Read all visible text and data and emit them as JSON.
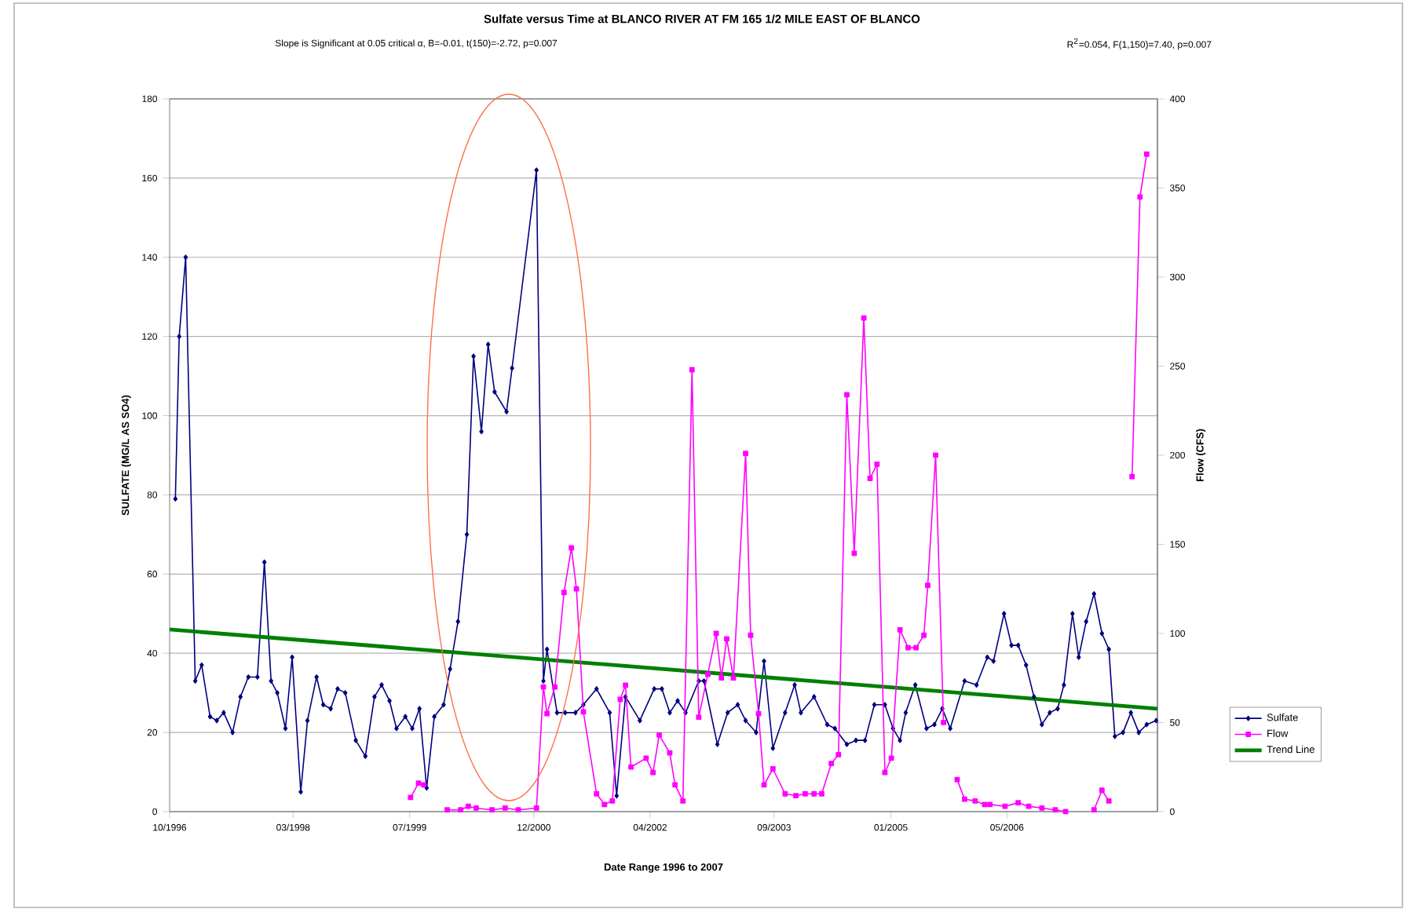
{
  "chart_data": {
    "type": "line",
    "title": "Sulfate versus Time at BLANCO RIVER AT FM 165 1/2 MILE EAST OF BLANCO",
    "subtitle": "Slope is Significant at 0.05 critical α, B=-0.01, t(150)=-2.72, p=0.007",
    "annotations": [
      "R$^{2}$=0.054, F(1,150)=7.40, p=0.007"
    ],
    "xlabel": "Date Range 1996 to 2007",
    "ylabel": "SULFATE (MG/L AS SO4)",
    "y2label": "Flow (CFS)",
    "xlim": [
      "1996-10-01",
      "2008-01-20"
    ],
    "xticks": [
      {
        "value": "1996-10-01",
        "label": "10/1996"
      },
      {
        "value": "1998-03-01",
        "label": "03/1998"
      },
      {
        "value": "1999-07-01",
        "label": "07/1999"
      },
      {
        "value": "2000-12-01",
        "label": "12/2000"
      },
      {
        "value": "2002-04-01",
        "label": "04/2002"
      },
      {
        "value": "2003-09-01",
        "label": "09/2003"
      },
      {
        "value": "2005-01-01",
        "label": "01/2005"
      },
      {
        "value": "2006-05-01",
        "label": "05/2006"
      }
    ],
    "ylim": [
      0,
      180
    ],
    "yticks": [
      0,
      20,
      40,
      60,
      80,
      100,
      120,
      140,
      160,
      180
    ],
    "y2lim": [
      0,
      400
    ],
    "y2ticks": [
      0,
      50,
      100,
      150,
      200,
      250,
      300,
      350,
      400
    ],
    "grid": "y",
    "legend": "right",
    "series": [
      {
        "name": "Sulfate",
        "color": "#000080",
        "marker": "diamond",
        "x": [
          "1996-10-25",
          "1996-11-10",
          "1996-12-07",
          "1997-01-16",
          "1997-02-12",
          "1997-03-19",
          "1997-04-16",
          "1997-05-15",
          "1997-06-21",
          "1997-07-24",
          "1997-08-26",
          "1997-10-03",
          "1997-11-01",
          "1997-11-29",
          "1997-12-25",
          "1998-01-28",
          "1998-02-25",
          "1998-04-02",
          "1998-04-30",
          "1998-06-07",
          "1998-07-05",
          "1998-08-05",
          "1998-09-03",
          "1998-10-05",
          "1998-11-18",
          "1998-12-28",
          "1999-02-04",
          "1999-03-06",
          "1999-04-08",
          "1999-05-07",
          "1999-06-13",
          "1999-07-12",
          "1999-08-11",
          "1999-09-10",
          "1999-10-12",
          "1999-11-20",
          "1999-12-17",
          "2000-01-19",
          "2000-02-25",
          "2000-03-24",
          "2000-04-26",
          "2000-05-24",
          "2000-06-20",
          "2000-08-09",
          "2000-09-01",
          "2000-12-12",
          "2001-01-10",
          "2001-01-25",
          "2001-03-08",
          "2001-04-11",
          "2001-05-24",
          "2001-06-26",
          "2001-08-20",
          "2001-10-14",
          "2001-11-12",
          "2001-12-19",
          "2002-02-17",
          "2002-04-18",
          "2002-05-20",
          "2002-06-22",
          "2002-07-25",
          "2002-08-27",
          "2002-10-21",
          "2002-11-12",
          "2003-01-07",
          "2003-02-19",
          "2003-04-02",
          "2003-05-05",
          "2003-06-18",
          "2003-07-21",
          "2003-08-27",
          "2003-10-17",
          "2003-11-26",
          "2003-12-22",
          "2004-02-15",
          "2004-04-10",
          "2004-05-12",
          "2004-07-01",
          "2004-08-08",
          "2004-09-15",
          "2004-10-24",
          "2004-12-07",
          "2005-01-10",
          "2005-02-08",
          "2005-03-04",
          "2005-04-13",
          "2005-05-30",
          "2005-07-02",
          "2005-08-04",
          "2005-09-06",
          "2005-11-05",
          "2005-12-25",
          "2006-02-08",
          "2006-03-06",
          "2006-04-19",
          "2006-05-20",
          "2006-06-17",
          "2006-07-20",
          "2006-08-22",
          "2006-09-24",
          "2006-10-27",
          "2006-11-29",
          "2006-12-25",
          "2007-01-30",
          "2007-02-25",
          "2007-03-28",
          "2007-04-30",
          "2007-06-02",
          "2007-07-01",
          "2007-07-26",
          "2007-08-29",
          "2007-10-01",
          "2007-11-03",
          "2007-12-06",
          "2008-01-15"
        ],
        "values": [
          79,
          120,
          140,
          33,
          37,
          24,
          23,
          25,
          20,
          29,
          34,
          34,
          63,
          33,
          30,
          21,
          39,
          5,
          23,
          34,
          27,
          26,
          31,
          30,
          18,
          14,
          29,
          32,
          28,
          21,
          24,
          21,
          26,
          6,
          24,
          27,
          36,
          48,
          70,
          115,
          96,
          118,
          106,
          101,
          112,
          162,
          33,
          41,
          25,
          25,
          25,
          27,
          31,
          25,
          4,
          29,
          23,
          31,
          31,
          25,
          28,
          25,
          33,
          33,
          17,
          25,
          27,
          23,
          20,
          38,
          16,
          25,
          32,
          25,
          29,
          22,
          21,
          17,
          18,
          18,
          27,
          27,
          21,
          18,
          25,
          32,
          21,
          22,
          26,
          21,
          33,
          32,
          39,
          38,
          50,
          42,
          42,
          37,
          29,
          22,
          25,
          26,
          32,
          50,
          39,
          48,
          55,
          45,
          41,
          19,
          20,
          25,
          20,
          22,
          23
        ]
      },
      {
        "name": "Flow",
        "color": "#ff00ff",
        "marker": "square",
        "axis": "y2",
        "x": [
          "1999-07-05",
          "1999-08-07",
          "1999-08-29",
          "1999-10-15",
          "1999-12-05",
          "2000-01-30",
          "2000-03-02",
          "2000-04-04",
          "2000-06-09",
          "2000-08-03",
          "2000-09-27",
          "2000-12-12",
          "2001-01-10",
          "2001-01-25",
          "2001-02-27",
          "2001-04-06",
          "2001-05-07",
          "2001-05-28",
          "2001-06-26",
          "2001-08-20",
          "2001-09-22",
          "2001-10-25",
          "2001-11-27",
          "2001-12-19",
          "2002-01-11",
          "2002-03-15",
          "2002-04-13",
          "2002-05-09",
          "2002-06-22",
          "2002-07-14",
          "2002-08-16",
          "2002-09-23",
          "2002-10-21",
          "2002-11-28",
          "2003-01-02",
          "2003-01-24",
          "2003-02-15",
          "2003-03-15",
          "2003-05-05",
          "2003-05-26",
          "2003-06-28",
          "2003-07-21",
          "2003-08-27",
          "2003-10-17",
          "2003-12-01",
          "2004-01-09",
          "2004-02-15",
          "2004-03-18",
          "2004-04-27",
          "2004-05-27",
          "2004-07-01",
          "2004-08-01",
          "2004-09-10",
          "2004-10-06",
          "2004-11-04",
          "2004-12-07",
          "2005-01-03",
          "2005-02-08",
          "2005-03-14",
          "2005-04-16",
          "2005-05-19",
          "2005-06-04",
          "2005-07-07",
          "2005-08-09",
          "2005-09-07",
          "2005-10-05",
          "2005-11-05",
          "2005-12-19",
          "2006-01-28",
          "2006-02-19",
          "2006-04-23",
          "2006-06-17",
          "2006-07-31",
          "2006-09-24",
          "2006-11-19",
          "2007-01-01",
          "2007-03-01",
          "2007-04-30",
          "2007-06-02",
          "2007-07-01",
          "2007-08-20",
          "2007-10-06",
          "2007-11-08",
          "2007-12-06"
        ],
        "values": [
          8,
          16,
          15,
          null,
          1,
          1,
          3,
          2,
          1,
          2,
          1,
          2,
          70,
          55,
          70,
          123,
          148,
          125,
          56,
          10,
          4,
          6,
          63,
          71,
          25,
          30,
          22,
          43,
          33,
          15,
          6,
          248,
          53,
          77,
          100,
          75,
          97,
          75,
          201,
          99,
          55,
          15,
          24,
          10,
          9,
          10,
          10,
          10,
          27,
          32,
          234,
          145,
          277,
          187,
          195,
          22,
          30,
          102,
          92,
          92,
          99,
          127,
          200,
          50,
          null,
          18,
          7,
          6,
          4,
          4,
          3,
          5,
          3,
          2,
          1,
          0,
          null,
          1,
          12,
          6,
          null,
          188,
          345,
          369
        ]
      },
      {
        "name": "Trend Line",
        "color": "#008000",
        "marker": "none",
        "x": [
          "1996-10-01",
          "2008-01-20"
        ],
        "values": [
          46,
          26
        ]
      }
    ]
  }
}
